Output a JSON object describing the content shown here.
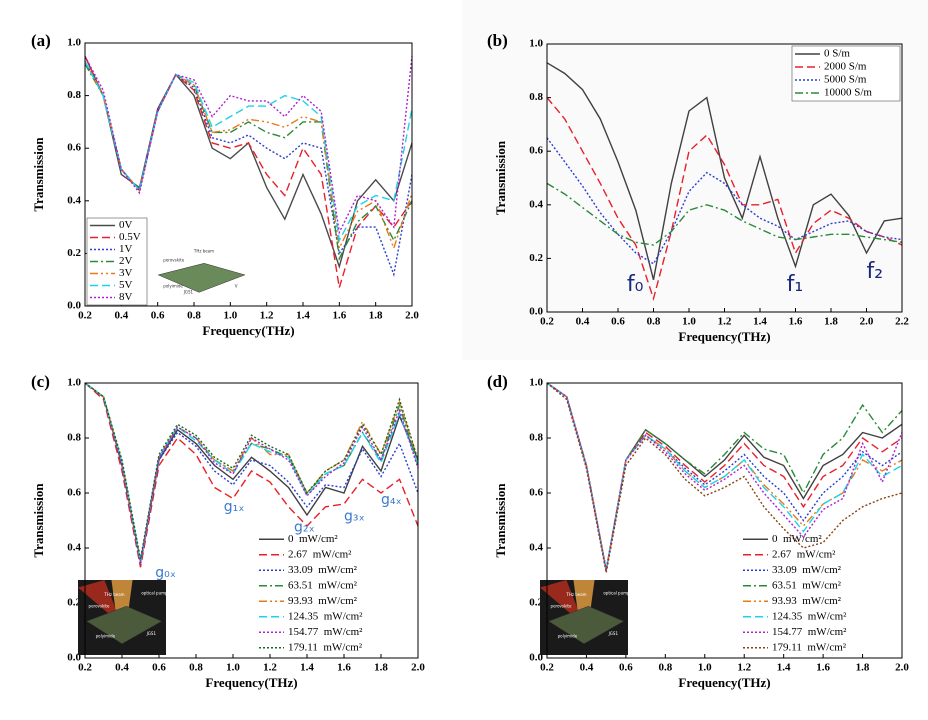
{
  "chart_data": [
    {
      "type": "line",
      "panel_label": "(a)",
      "xlabel": "Frequency(THz)",
      "ylabel": "Transmission",
      "x": [
        0.2,
        0.3,
        0.4,
        0.5,
        0.6,
        0.7,
        0.8,
        0.9,
        1.0,
        1.1,
        1.2,
        1.3,
        1.4,
        1.5,
        1.6,
        1.7,
        1.8,
        1.9,
        2.0
      ],
      "xlim": [
        0.2,
        2.0
      ],
      "ylim": [
        0,
        1
      ],
      "xticks": [
        0.2,
        0.4,
        0.6,
        0.8,
        {
          "value": 1,
          "label": "1.0"
        },
        1.2,
        1.4,
        1.6,
        1.8,
        {
          "value": 2,
          "label": "2.0"
        }
      ],
      "yticks": [
        {
          "value": 0,
          "label": "0.0"
        },
        0.2,
        0.4,
        0.6,
        0.8,
        {
          "value": 1,
          "label": "1.0"
        }
      ],
      "legend": "lower left",
      "legend_frame": true,
      "series": [
        {
          "name": "0V",
          "color": "#4a4a4a",
          "style": "solid",
          "values": [
            0.95,
            0.8,
            0.5,
            0.45,
            0.75,
            0.88,
            0.8,
            0.6,
            0.56,
            0.62,
            0.45,
            0.33,
            0.5,
            0.35,
            0.15,
            0.4,
            0.48,
            0.4,
            0.62
          ]
        },
        {
          "name": "0.5V",
          "color": "#e8202a",
          "style": "dash",
          "values": [
            0.95,
            0.8,
            0.52,
            0.44,
            0.74,
            0.88,
            0.82,
            0.62,
            0.6,
            0.62,
            0.5,
            0.42,
            0.6,
            0.5,
            0.07,
            0.3,
            0.38,
            0.3,
            0.4
          ]
        },
        {
          "name": "1V",
          "color": "#2a3fd0",
          "style": "dot",
          "values": [
            0.93,
            0.8,
            0.52,
            0.44,
            0.74,
            0.88,
            0.83,
            0.64,
            0.62,
            0.65,
            0.6,
            0.56,
            0.62,
            0.6,
            0.2,
            0.3,
            0.3,
            0.12,
            0.5
          ]
        },
        {
          "name": "2V",
          "color": "#2a8a3a",
          "style": "dashdot",
          "values": [
            0.92,
            0.8,
            0.52,
            0.44,
            0.74,
            0.88,
            0.84,
            0.66,
            0.66,
            0.7,
            0.66,
            0.64,
            0.7,
            0.7,
            0.18,
            0.32,
            0.38,
            0.25,
            0.4
          ]
        },
        {
          "name": "3V",
          "color": "#e87a1a",
          "style": "dashdotdot",
          "values": [
            0.93,
            0.8,
            0.52,
            0.44,
            0.74,
            0.88,
            0.84,
            0.66,
            0.67,
            0.71,
            0.7,
            0.68,
            0.72,
            0.7,
            0.22,
            0.36,
            0.4,
            0.22,
            0.43
          ]
        },
        {
          "name": "5V",
          "color": "#1ad4e8",
          "style": "dash",
          "values": [
            0.93,
            0.8,
            0.52,
            0.44,
            0.74,
            0.88,
            0.85,
            0.68,
            0.72,
            0.76,
            0.76,
            0.8,
            0.78,
            0.72,
            0.25,
            0.38,
            0.42,
            0.4,
            0.75
          ]
        },
        {
          "name": "8V",
          "color": "#b020d0",
          "style": "dot",
          "values": [
            0.95,
            0.82,
            0.52,
            0.43,
            0.74,
            0.88,
            0.86,
            0.72,
            0.8,
            0.78,
            0.78,
            0.72,
            0.8,
            0.74,
            0.28,
            0.42,
            0.4,
            0.3,
            0.95
          ]
        }
      ],
      "inset_labels": [
        "THz beam",
        "perovskite",
        "polyimide",
        "JGS1",
        "V"
      ]
    },
    {
      "type": "line",
      "panel_label": "(b)",
      "xlabel": "Frequency(THz)",
      "ylabel": "Transmission",
      "x": [
        0.2,
        0.3,
        0.4,
        0.5,
        0.6,
        0.7,
        0.8,
        0.9,
        1.0,
        1.1,
        1.2,
        1.3,
        1.4,
        1.5,
        1.6,
        1.7,
        1.8,
        1.9,
        2.0,
        2.1,
        2.2
      ],
      "xlim": [
        0.2,
        2.2
      ],
      "ylim": [
        0,
        1
      ],
      "xticks": [
        0.2,
        0.4,
        0.6,
        0.8,
        {
          "value": 1,
          "label": "1.0"
        },
        1.2,
        1.4,
        1.6,
        1.8,
        {
          "value": 2,
          "label": "2.0"
        },
        2.2
      ],
      "yticks": [
        {
          "value": 0,
          "label": "0.0"
        },
        0.2,
        0.4,
        0.6,
        0.8,
        {
          "value": 1,
          "label": "1.0"
        }
      ],
      "legend": "upper right",
      "legend_frame": true,
      "series": [
        {
          "name": "0 S/m",
          "color": "#404040",
          "style": "solid",
          "values": [
            0.93,
            0.89,
            0.83,
            0.72,
            0.56,
            0.38,
            0.12,
            0.48,
            0.75,
            0.8,
            0.5,
            0.35,
            0.58,
            0.35,
            0.17,
            0.4,
            0.44,
            0.36,
            0.22,
            0.34,
            0.35
          ]
        },
        {
          "name": "2000 S/m",
          "color": "#e8202a",
          "style": "dash",
          "values": [
            0.8,
            0.72,
            0.6,
            0.48,
            0.35,
            0.25,
            0.05,
            0.3,
            0.6,
            0.66,
            0.55,
            0.4,
            0.4,
            0.42,
            0.22,
            0.33,
            0.38,
            0.35,
            0.3,
            0.28,
            0.25
          ]
        },
        {
          "name": "5000 S/m",
          "color": "#2a3fd0",
          "style": "dot",
          "values": [
            0.65,
            0.56,
            0.47,
            0.37,
            0.29,
            0.22,
            0.18,
            0.3,
            0.45,
            0.52,
            0.48,
            0.4,
            0.35,
            0.32,
            0.27,
            0.3,
            0.33,
            0.34,
            0.3,
            0.28,
            0.27
          ]
        },
        {
          "name": "10000 S/m",
          "color": "#2a8a3a",
          "style": "dashdot",
          "values": [
            0.48,
            0.44,
            0.39,
            0.34,
            0.29,
            0.26,
            0.25,
            0.3,
            0.38,
            0.4,
            0.38,
            0.34,
            0.31,
            0.28,
            0.27,
            0.28,
            0.29,
            0.29,
            0.28,
            0.27,
            0.26
          ]
        }
      ],
      "annotations": [
        "f₀",
        "f₁",
        "f₂"
      ]
    },
    {
      "type": "line",
      "panel_label": "(c)",
      "xlabel": "Frequency(THz)",
      "ylabel": "Transmission",
      "x": [
        0.2,
        0.3,
        0.4,
        0.5,
        0.6,
        0.7,
        0.8,
        0.9,
        1.0,
        1.1,
        1.2,
        1.3,
        1.4,
        1.5,
        1.6,
        1.7,
        1.8,
        1.9,
        2.0
      ],
      "xlim": [
        0.2,
        2.0
      ],
      "ylim": [
        0,
        1
      ],
      "xticks": [
        0.2,
        0.4,
        0.6,
        0.8,
        {
          "value": 1,
          "label": "1.0"
        },
        1.2,
        1.4,
        1.6,
        1.8,
        {
          "value": 2,
          "label": "2.0"
        }
      ],
      "yticks": [
        {
          "value": 0,
          "label": "0.0"
        },
        0.2,
        0.4,
        0.6,
        0.8,
        {
          "value": 1,
          "label": "1.0"
        }
      ],
      "legend": "lower right",
      "legend_frame": false,
      "series": [
        {
          "name": "0  mW/cm²",
          "color": "#404040",
          "style": "solid",
          "values": [
            1.0,
            0.95,
            0.7,
            0.35,
            0.72,
            0.83,
            0.78,
            0.7,
            0.65,
            0.73,
            0.68,
            0.62,
            0.52,
            0.62,
            0.6,
            0.77,
            0.68,
            0.88,
            0.72
          ]
        },
        {
          "name": "2.67  mW/cm²",
          "color": "#e8202a",
          "style": "dash",
          "values": [
            1.0,
            0.94,
            0.68,
            0.33,
            0.7,
            0.8,
            0.74,
            0.62,
            0.58,
            0.68,
            0.64,
            0.55,
            0.48,
            0.55,
            0.56,
            0.65,
            0.6,
            0.65,
            0.48
          ]
        },
        {
          "name": "33.09  mW/cm²",
          "color": "#2a3fd0",
          "style": "dot",
          "values": [
            1.0,
            0.95,
            0.7,
            0.34,
            0.72,
            0.82,
            0.77,
            0.68,
            0.63,
            0.72,
            0.7,
            0.64,
            0.55,
            0.63,
            0.62,
            0.76,
            0.66,
            0.78,
            0.6
          ]
        },
        {
          "name": "63.51  mW/cm²",
          "color": "#2a8a3a",
          "style": "dashdot",
          "values": [
            1.0,
            0.95,
            0.71,
            0.35,
            0.73,
            0.84,
            0.8,
            0.72,
            0.68,
            0.78,
            0.76,
            0.73,
            0.6,
            0.67,
            0.7,
            0.82,
            0.72,
            0.92,
            0.7
          ]
        },
        {
          "name": "93.93  mW/cm²",
          "color": "#e87a1a",
          "style": "dashdotdot",
          "values": [
            1.0,
            0.95,
            0.71,
            0.35,
            0.73,
            0.84,
            0.8,
            0.72,
            0.68,
            0.8,
            0.74,
            0.74,
            0.6,
            0.68,
            0.72,
            0.86,
            0.74,
            0.93,
            0.72
          ]
        },
        {
          "name": "124.35  mW/cm²",
          "color": "#1ad4e8",
          "style": "dash",
          "values": [
            1.0,
            0.95,
            0.71,
            0.35,
            0.73,
            0.84,
            0.79,
            0.72,
            0.67,
            0.78,
            0.75,
            0.73,
            0.59,
            0.67,
            0.7,
            0.82,
            0.71,
            0.89,
            0.7
          ]
        },
        {
          "name": "154.77  mW/cm²",
          "color": "#b020d0",
          "style": "dot",
          "values": [
            1.0,
            0.95,
            0.71,
            0.35,
            0.73,
            0.84,
            0.8,
            0.71,
            0.67,
            0.8,
            0.76,
            0.72,
            0.59,
            0.66,
            0.71,
            0.84,
            0.72,
            0.9,
            0.69
          ]
        },
        {
          "name": "179.11  mW/cm²",
          "color": "#1a6a1a",
          "style": "dot",
          "values": [
            1.0,
            0.95,
            0.72,
            0.36,
            0.74,
            0.85,
            0.81,
            0.73,
            0.69,
            0.81,
            0.77,
            0.74,
            0.6,
            0.68,
            0.72,
            0.85,
            0.74,
            0.94,
            0.72
          ]
        }
      ],
      "annotations": [
        "g₀ₓ",
        "g₁ₓ",
        "g₂ₓ",
        "g₃ₓ",
        "g₄ₓ"
      ],
      "inset_labels": [
        "THz beam",
        "optical pump",
        "perovskite",
        "polyimide",
        "JGS1"
      ]
    },
    {
      "type": "line",
      "panel_label": "(d)",
      "xlabel": "Frequency(THz)",
      "ylabel": "Transmission",
      "x": [
        0.2,
        0.3,
        0.4,
        0.5,
        0.6,
        0.7,
        0.8,
        0.9,
        1.0,
        1.1,
        1.2,
        1.3,
        1.4,
        1.5,
        1.6,
        1.7,
        1.8,
        1.9,
        2.0
      ],
      "xlim": [
        0.2,
        2.0
      ],
      "ylim": [
        0,
        1
      ],
      "xticks": [
        0.2,
        0.4,
        0.6,
        0.8,
        {
          "value": 1,
          "label": "1.0"
        },
        1.2,
        1.4,
        1.6,
        1.8,
        {
          "value": 2,
          "label": "2.0"
        }
      ],
      "yticks": [
        {
          "value": 0,
          "label": "0.0"
        },
        0.2,
        0.4,
        0.6,
        0.8,
        {
          "value": 1,
          "label": "1.0"
        }
      ],
      "legend": "lower right",
      "legend_frame": false,
      "series": [
        {
          "name": "0  mW/cm²",
          "color": "#404040",
          "style": "solid",
          "values": [
            1.0,
            0.95,
            0.7,
            0.32,
            0.72,
            0.83,
            0.78,
            0.72,
            0.66,
            0.72,
            0.81,
            0.73,
            0.7,
            0.58,
            0.7,
            0.74,
            0.82,
            0.8,
            0.85
          ]
        },
        {
          "name": "2.67  mW/cm²",
          "color": "#e8202a",
          "style": "dash",
          "values": [
            1.0,
            0.95,
            0.7,
            0.32,
            0.72,
            0.82,
            0.77,
            0.7,
            0.64,
            0.7,
            0.78,
            0.7,
            0.66,
            0.55,
            0.66,
            0.7,
            0.8,
            0.75,
            0.8
          ]
        },
        {
          "name": "33.09  mW/cm²",
          "color": "#2a3fd0",
          "style": "dot",
          "values": [
            1.0,
            0.95,
            0.7,
            0.32,
            0.72,
            0.81,
            0.76,
            0.69,
            0.63,
            0.68,
            0.74,
            0.66,
            0.6,
            0.5,
            0.6,
            0.66,
            0.75,
            0.7,
            0.75
          ]
        },
        {
          "name": "63.51  mW/cm²",
          "color": "#2a8a3a",
          "style": "dashdot",
          "values": [
            1.0,
            0.95,
            0.7,
            0.32,
            0.72,
            0.83,
            0.78,
            0.72,
            0.67,
            0.74,
            0.82,
            0.76,
            0.74,
            0.6,
            0.74,
            0.8,
            0.92,
            0.82,
            0.9
          ]
        },
        {
          "name": "93.93  mW/cm²",
          "color": "#e87a1a",
          "style": "dashdotdot",
          "values": [
            1.0,
            0.95,
            0.7,
            0.32,
            0.72,
            0.81,
            0.76,
            0.68,
            0.62,
            0.66,
            0.72,
            0.63,
            0.56,
            0.48,
            0.56,
            0.6,
            0.72,
            0.68,
            0.72
          ]
        },
        {
          "name": "124.35  mW/cm²",
          "color": "#1ad4e8",
          "style": "dash",
          "values": [
            1.0,
            0.95,
            0.7,
            0.32,
            0.72,
            0.81,
            0.76,
            0.68,
            0.62,
            0.66,
            0.72,
            0.62,
            0.55,
            0.46,
            0.56,
            0.6,
            0.74,
            0.66,
            0.7
          ]
        },
        {
          "name": "154.77  mW/cm²",
          "color": "#b020d0",
          "style": "dot",
          "values": [
            1.0,
            0.95,
            0.7,
            0.32,
            0.72,
            0.81,
            0.75,
            0.67,
            0.61,
            0.65,
            0.7,
            0.6,
            0.52,
            0.44,
            0.54,
            0.58,
            0.78,
            0.64,
            0.82
          ]
        },
        {
          "name": "179.11  mW/cm²",
          "color": "#8a4010",
          "style": "dot",
          "values": [
            1.0,
            0.94,
            0.69,
            0.31,
            0.7,
            0.8,
            0.74,
            0.65,
            0.59,
            0.62,
            0.66,
            0.55,
            0.47,
            0.4,
            0.42,
            0.5,
            0.55,
            0.58,
            0.6
          ]
        }
      ],
      "inset_labels": [
        "THz beam",
        "optical pump",
        "perovskite",
        "polyimide",
        "JGS1"
      ]
    }
  ]
}
